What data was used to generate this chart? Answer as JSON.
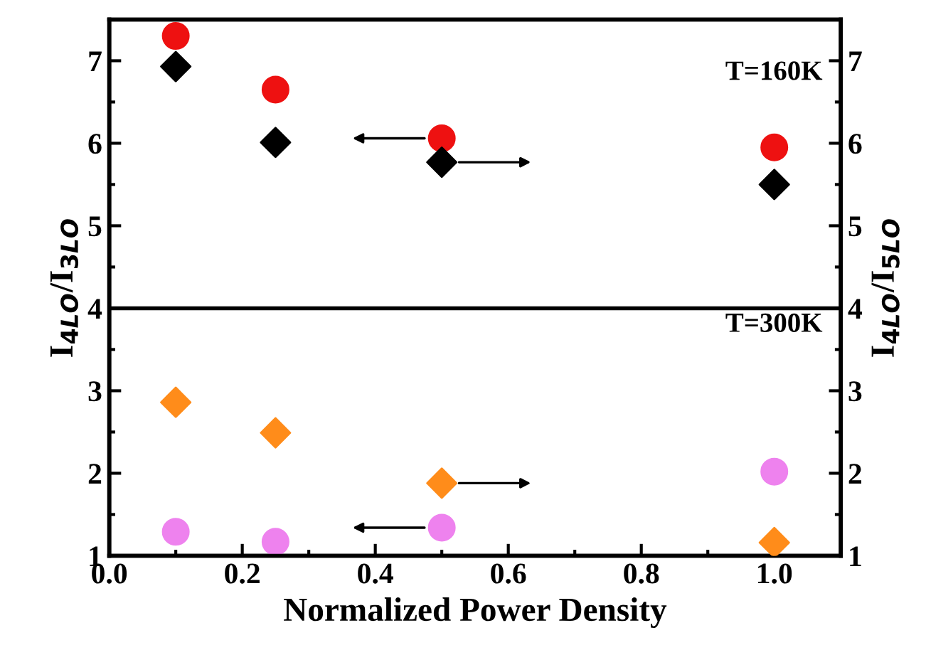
{
  "chart_data": {
    "type": "scatter",
    "xlabel": "Normalized Power Density",
    "ylabel": "I$_{4LO}$/I$_{3LO}$",
    "y2label": "I$_{4LO}$/I$_{5LO}$",
    "x": [
      0.1,
      0.25,
      0.5,
      1.0
    ],
    "series": [
      {
        "color": "#ee1111",
        "marker": "circle",
        "values": [
          7.3,
          6.65,
          6.06,
          5.95
        ]
      },
      {
        "color": "#000000",
        "marker": "diamond",
        "axis": "y2",
        "values": [
          6.93,
          6.01,
          5.77,
          5.5
        ]
      },
      {
        "color": "#ff8c1a",
        "marker": "diamond",
        "axis": "y2",
        "values": [
          2.86,
          2.49,
          1.88,
          1.16
        ]
      },
      {
        "color": "#ee82ee",
        "marker": "circle",
        "values": [
          1.29,
          1.17,
          1.34,
          2.02
        ]
      }
    ],
    "xlim": [
      0.0,
      1.1
    ],
    "xticks": [
      {
        "value": 0.0,
        "label": "0.0"
      },
      0.2,
      0.4,
      0.6,
      0.8,
      {
        "value": 1.0,
        "label": "1.0"
      }
    ],
    "ylim": [
      1,
      7.5
    ],
    "yticks": [
      1,
      2,
      3,
      4,
      5,
      6,
      7
    ],
    "y2lim": [
      1,
      7.5
    ],
    "y2ticks": [
      1,
      2,
      3,
      4,
      5,
      6,
      7
    ],
    "ref_lines": [
      {
        "axis": "y",
        "value": 4,
        "color": "#000000"
      }
    ],
    "annotations": [
      "T=160K",
      "T=300K"
    ],
    "grid": false,
    "legend": false
  }
}
